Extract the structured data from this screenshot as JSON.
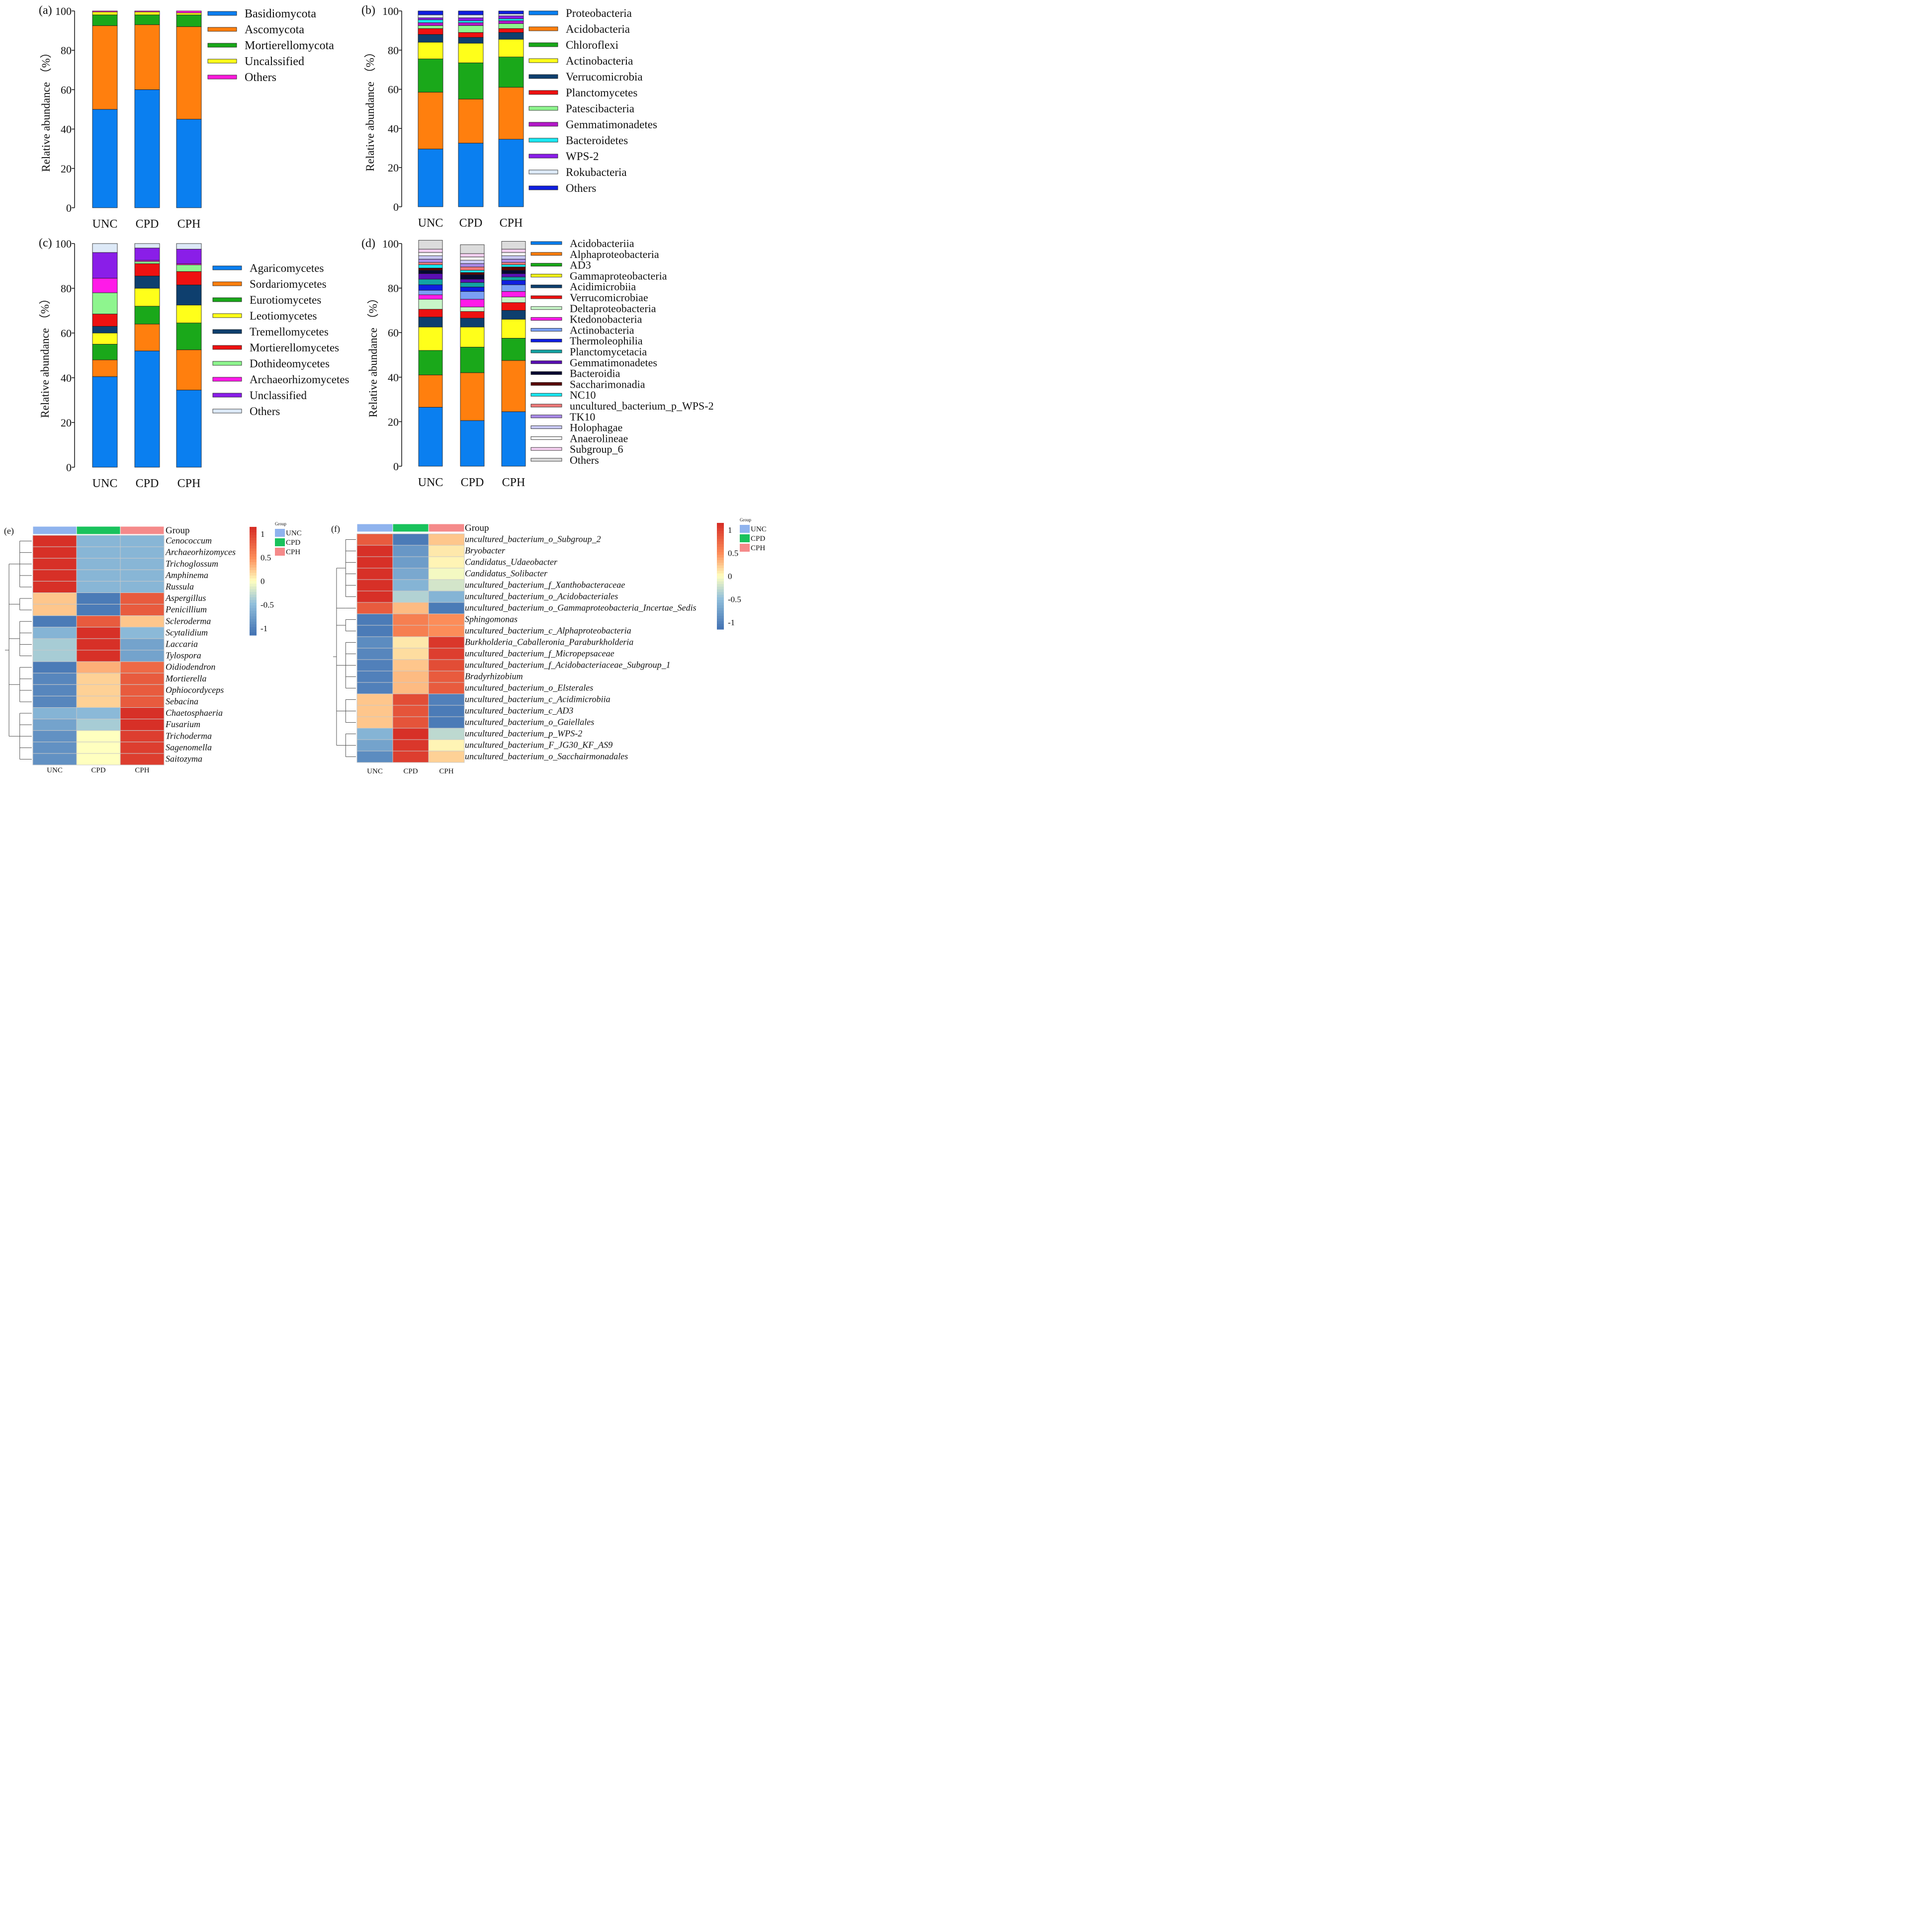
{
  "chart_data": [
    {
      "panel_label": "(a)",
      "type": "stacked_bar",
      "ylabel": "Relative abundance （%）",
      "ylim": [
        0,
        100
      ],
      "yticks": [
        "0",
        "20",
        "40",
        "60",
        "80",
        "100"
      ],
      "categories": [
        "UNC",
        "CPD",
        "CPH"
      ],
      "series": [
        {
          "name": "Basidiomycota",
          "color": "#0a7ff0",
          "values": [
            50.0,
            60.0,
            45.0
          ]
        },
        {
          "name": "Ascomycota",
          "color": "#ff7f0e",
          "values": [
            42.5,
            33.0,
            47.0
          ]
        },
        {
          "name": "Mortierellomycota",
          "color": "#1aa81a",
          "values": [
            5.5,
            5.0,
            6.0
          ]
        },
        {
          "name": "Uncalssified",
          "color": "#ffff1a",
          "values": [
            1.5,
            1.5,
            1.0
          ]
        },
        {
          "name": "Others",
          "color": "#ff1adb",
          "values": [
            0.5,
            0.5,
            1.0
          ]
        }
      ]
    },
    {
      "panel_label": "(b)",
      "type": "stacked_bar",
      "ylabel": "Relative abundance （%）",
      "ylim": [
        0,
        100
      ],
      "yticks": [
        "0",
        "20",
        "40",
        "60",
        "80",
        "100"
      ],
      "categories": [
        "UNC",
        "CPD",
        "CPH"
      ],
      "series": [
        {
          "name": "Proteobacteria",
          "color": "#0a7ff0",
          "values": [
            29.5,
            32.5,
            34.5
          ]
        },
        {
          "name": "Acidobacteria",
          "color": "#ff7f0e",
          "values": [
            29.0,
            22.5,
            26.5
          ]
        },
        {
          "name": "Chloroflexi",
          "color": "#1aa81a",
          "values": [
            17.0,
            18.5,
            15.5
          ]
        },
        {
          "name": "Actinobacteria",
          "color": "#ffff1a",
          "values": [
            8.5,
            10.0,
            9.0
          ]
        },
        {
          "name": "Verrucomicrobia",
          "color": "#0e3f6e",
          "values": [
            4.0,
            3.0,
            3.5
          ]
        },
        {
          "name": "Planctomycetes",
          "color": "#ee1111",
          "values": [
            3.0,
            2.5,
            2.0
          ]
        },
        {
          "name": "Patescibacteria",
          "color": "#8ef58e",
          "values": [
            1.5,
            3.5,
            2.5
          ]
        },
        {
          "name": "Gemmatimonadetes",
          "color": "#b318c8",
          "values": [
            1.5,
            1.5,
            1.5
          ]
        },
        {
          "name": "Bacteroidetes",
          "color": "#1ae8f2",
          "values": [
            1.5,
            1.0,
            1.0
          ]
        },
        {
          "name": "WPS-2",
          "color": "#8a1ee8",
          "values": [
            1.0,
            1.5,
            1.5
          ]
        },
        {
          "name": "Rokubacteria",
          "color": "#dde9f7",
          "values": [
            1.5,
            1.5,
            1.0
          ]
        },
        {
          "name": "Others",
          "color": "#0f1ee0",
          "values": [
            2.0,
            2.0,
            1.5
          ]
        }
      ]
    },
    {
      "panel_label": "(c)",
      "type": "stacked_bar",
      "ylabel": "Relative abundance （%）",
      "ylim": [
        0,
        100
      ],
      "yticks": [
        "0",
        "20",
        "40",
        "60",
        "80",
        "100"
      ],
      "categories": [
        "UNC",
        "CPD",
        "CPH"
      ],
      "series": [
        {
          "name": "Agaricomycetes",
          "color": "#0a7ff0",
          "values": [
            40.5,
            52.0,
            34.5
          ]
        },
        {
          "name": "Sordariomycetes",
          "color": "#ff7f0e",
          "values": [
            7.5,
            12.0,
            18.0
          ]
        },
        {
          "name": "Eurotiomycetes",
          "color": "#1aa81a",
          "values": [
            7.0,
            8.0,
            12.0
          ]
        },
        {
          "name": "Leotiomycetes",
          "color": "#ffff1a",
          "values": [
            5.0,
            8.0,
            8.0
          ]
        },
        {
          "name": "Tremellomycetes",
          "color": "#0e3f6e",
          "values": [
            3.0,
            5.5,
            9.0
          ]
        },
        {
          "name": "Mortierellomycetes",
          "color": "#ee1111",
          "values": [
            5.5,
            5.5,
            6.0
          ]
        },
        {
          "name": "Dothideomycetes",
          "color": "#8ef58e",
          "values": [
            9.5,
            1.0,
            3.0
          ]
        },
        {
          "name": "Archaeorhizomycetes",
          "color": "#ff1ae8",
          "values": [
            6.5,
            0.5,
            0.5
          ]
        },
        {
          "name": "Unclassified",
          "color": "#8a1ee8",
          "values": [
            11.5,
            5.5,
            6.5
          ]
        },
        {
          "name": "Others",
          "color": "#dde9f7",
          "values": [
            4.0,
            2.0,
            2.5
          ]
        }
      ]
    },
    {
      "panel_label": "(d)",
      "type": "stacked_bar",
      "ylabel": "Relative abundance （%）",
      "ylim": [
        0,
        100
      ],
      "yticks": [
        "0",
        "20",
        "40",
        "60",
        "80",
        "100"
      ],
      "categories": [
        "UNC",
        "CPD",
        "CPH"
      ],
      "series": [
        {
          "name": "Acidobacteriia",
          "color": "#0a7ff0",
          "values": [
            26.5,
            20.5,
            24.5
          ]
        },
        {
          "name": "Alphaproteobacteria",
          "color": "#ff7f0e",
          "values": [
            14.5,
            21.5,
            23.0
          ]
        },
        {
          "name": "AD3",
          "color": "#1aa81a",
          "values": [
            11.0,
            11.5,
            10.0
          ]
        },
        {
          "name": "Gammaproteobacteria",
          "color": "#ffff1a",
          "values": [
            10.5,
            9.0,
            8.5
          ]
        },
        {
          "name": "Acidimicrobiia",
          "color": "#0e3f6e",
          "values": [
            4.5,
            4.0,
            4.0
          ]
        },
        {
          "name": "Verrucomicrobiae",
          "color": "#ee1111",
          "values": [
            3.5,
            3.0,
            3.5
          ]
        },
        {
          "name": "Deltaproteobacteria",
          "color": "#c8f5c8",
          "values": [
            4.5,
            2.0,
            2.5
          ]
        },
        {
          "name": "Ktedonobacteria",
          "color": "#ff1ae8",
          "values": [
            2.0,
            3.5,
            2.5
          ]
        },
        {
          "name": "Actinobacteria",
          "color": "#7a9ff5",
          "values": [
            2.0,
            3.5,
            3.0
          ]
        },
        {
          "name": "Thermoleophilia",
          "color": "#0f1ee0",
          "values": [
            2.5,
            2.0,
            2.0
          ]
        },
        {
          "name": "Planctomycetacia",
          "color": "#12a3a3",
          "values": [
            2.5,
            2.0,
            1.5
          ]
        },
        {
          "name": "Gemmatimonadetes",
          "color": "#5a0fb3",
          "values": [
            2.5,
            1.5,
            1.5
          ]
        },
        {
          "name": "Bacteroidia",
          "color": "#050a33",
          "values": [
            1.5,
            2.0,
            1.5
          ]
        },
        {
          "name": "Saccharimonadia",
          "color": "#5a0505",
          "values": [
            1.0,
            1.0,
            1.5
          ]
        },
        {
          "name": "NC10",
          "color": "#1ae8f2",
          "values": [
            1.5,
            1.0,
            1.0
          ]
        },
        {
          "name": "uncultured_bacterium_p_WPS-2",
          "color": "#f07a7a",
          "values": [
            1.0,
            1.5,
            1.0
          ]
        },
        {
          "name": "TK10",
          "color": "#a98ae8",
          "values": [
            1.5,
            1.5,
            1.5
          ]
        },
        {
          "name": "Holophagae",
          "color": "#c8c8f5",
          "values": [
            1.5,
            1.5,
            1.5
          ]
        },
        {
          "name": "Anaerolineae",
          "color": "#f5f5f5",
          "values": [
            1.5,
            1.5,
            1.5
          ]
        },
        {
          "name": "Subgroup_6",
          "color": "#f5d0f0",
          "values": [
            1.5,
            1.5,
            1.5
          ]
        },
        {
          "name": "Others",
          "color": "#dcdcdc",
          "values": [
            4.0,
            4.0,
            3.5
          ]
        }
      ]
    },
    {
      "panel_label": "(e)",
      "type": "heatmap",
      "group_title": "Group",
      "columns": [
        "UNC",
        "CPD",
        "CPH"
      ],
      "legend_title": "Group",
      "group_colors": [
        "#8fb3ee",
        "#19c25c",
        "#f58a8a"
      ],
      "scale_ticks": [
        "1",
        "0.5",
        "0",
        "-0.5",
        "-1"
      ],
      "rows": [
        "Cenococcum",
        "Archaeorhizomyces",
        "Trichoglossum",
        "Amphinema",
        "Russula",
        "Aspergillus",
        "Penicillium",
        "Scleroderma",
        "Scytalidium",
        "Laccaria",
        "Tylospora",
        "Oidiodendron",
        "Mortierella",
        "Ophiocordyceps",
        "Sebacina",
        "Chaetosphaeria",
        "Fusarium",
        "Trichoderma",
        "Sagenomella",
        "Saitozyma"
      ],
      "values": [
        [
          1.15,
          -0.58,
          -0.58
        ],
        [
          1.15,
          -0.58,
          -0.58
        ],
        [
          1.15,
          -0.58,
          -0.58
        ],
        [
          1.15,
          -0.58,
          -0.58
        ],
        [
          1.15,
          -0.58,
          -0.58
        ],
        [
          0.25,
          -1.1,
          0.85
        ],
        [
          0.25,
          -1.1,
          0.85
        ],
        [
          -1.1,
          0.85,
          0.25
        ],
        [
          -0.6,
          1.15,
          -0.55
        ],
        [
          -0.4,
          1.15,
          -0.75
        ],
        [
          -0.4,
          1.15,
          -0.75
        ],
        [
          -1.1,
          0.35,
          0.75
        ],
        [
          -1.0,
          0.2,
          0.85
        ],
        [
          -1.0,
          0.2,
          0.85
        ],
        [
          -1.0,
          0.2,
          0.85
        ],
        [
          -0.6,
          -0.55,
          1.15
        ],
        [
          -0.75,
          -0.4,
          1.15
        ],
        [
          -0.9,
          0.0,
          1.05
        ],
        [
          -0.9,
          0.0,
          1.05
        ],
        [
          -0.9,
          0.0,
          1.05
        ]
      ]
    },
    {
      "panel_label": "(f)",
      "type": "heatmap",
      "group_title": "Group",
      "columns": [
        "UNC",
        "CPD",
        "CPH"
      ],
      "legend_title": "Group",
      "group_colors": [
        "#8fb3ee",
        "#19c25c",
        "#f58a8a"
      ],
      "scale_ticks": [
        "1",
        "0.5",
        "0",
        "-0.5",
        "-1"
      ],
      "rows": [
        "uncultured_bacterium_o_Subgroup_2",
        "Bryobacter",
        "Candidatus_Udaeobacter",
        "Candidatus_Solibacter",
        "uncultured_bacterium_f_Xanthobacteraceae",
        "uncultured_bacterium_o_Acidobacteriales",
        "uncultured_bacterium_o_Gammaproteobacteria_Incertae_Sedis",
        "Sphingomonas",
        "uncultured_bacterium_c_Alphaproteobacteria",
        "Burkholderia_Caballeronia_Paraburkholderia",
        "uncultured_bacterium_f_Micropepsaceae",
        "uncultured_bacterium_f_Acidobacteriaceae_Subgroup_1",
        "Bradyrhizobium",
        "uncultured_bacterium_o_Elsterales",
        "uncultured_bacterium_c_Acidimicrobiia",
        "uncultured_bacterium_c_AD3",
        "uncultured_bacterium_o_Gaiellales",
        "uncultured_bacterium_p_WPS-2",
        "uncultured_bacterium_F_JG30_KF_AS9",
        "uncultured_bacterium_o_Sacchairmonadales"
      ],
      "values": [
        [
          0.85,
          -1.1,
          0.25
        ],
        [
          1.15,
          -0.85,
          0.1
        ],
        [
          1.15,
          -0.8,
          0.05
        ],
        [
          1.15,
          -0.7,
          -0.05
        ],
        [
          1.15,
          -0.6,
          -0.2
        ],
        [
          1.15,
          -0.35,
          -0.6
        ],
        [
          0.85,
          0.3,
          -1.1
        ],
        [
          -1.1,
          0.6,
          0.5
        ],
        [
          -1.1,
          0.6,
          0.5
        ],
        [
          -0.95,
          0.1,
          1.1
        ],
        [
          -1.0,
          0.15,
          1.05
        ],
        [
          -1.05,
          0.25,
          0.95
        ],
        [
          -1.05,
          0.3,
          0.85
        ],
        [
          -1.05,
          0.3,
          0.85
        ],
        [
          0.25,
          0.95,
          -1.05
        ],
        [
          0.25,
          0.9,
          -1.1
        ],
        [
          0.25,
          0.9,
          -1.1
        ],
        [
          -0.6,
          1.15,
          -0.3
        ],
        [
          -0.75,
          1.1,
          0.05
        ],
        [
          -0.95,
          1.05,
          0.2
        ]
      ]
    }
  ]
}
